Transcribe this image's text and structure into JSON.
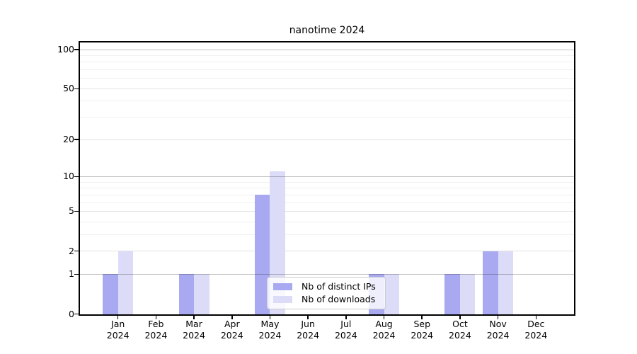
{
  "header": {
    "title": "nanotime 2024"
  },
  "chart_data": {
    "type": "bar",
    "title": "nanotime 2024",
    "yscale": "log1p",
    "ylim": [
      0,
      113
    ],
    "grid": true,
    "categories": [
      "Jan",
      "Feb",
      "Mar",
      "Apr",
      "May",
      "Jun",
      "Jul",
      "Aug",
      "Sep",
      "Oct",
      "Nov",
      "Dec"
    ],
    "category_sublabel": "2024",
    "series": [
      {
        "name": "Nb of distinct IPs",
        "color": "#a9a9f1",
        "values": [
          1,
          0,
          1,
          0,
          7,
          0,
          0,
          1,
          0,
          1,
          2,
          0
        ]
      },
      {
        "name": "Nb of downloads",
        "color": "#dcdcf8",
        "values": [
          2,
          0,
          1,
          0,
          11,
          0,
          0,
          1,
          0,
          1,
          2,
          0
        ]
      }
    ],
    "yticks": [
      0,
      1,
      2,
      5,
      10,
      20,
      50,
      100
    ],
    "gridlines_decade": [
      1,
      10,
      100
    ],
    "gridlines_major": [
      2,
      5,
      20,
      50
    ],
    "gridlines_minor": [
      3,
      4,
      6,
      7,
      8,
      9,
      30,
      40,
      60,
      70,
      80,
      90
    ],
    "legend": {
      "position": "lower-center",
      "entries": [
        "Nb of distinct IPs",
        "Nb of downloads"
      ]
    }
  },
  "colors": {
    "bar_ips": "#a9a9f1",
    "bar_downloads": "#dcdcf8",
    "axis": "#000000",
    "grid_decade": "#c2c2c2",
    "grid_major": "#e3e3e3",
    "grid_minor": "#f0f0f0",
    "legend_border": "#cccccc"
  }
}
